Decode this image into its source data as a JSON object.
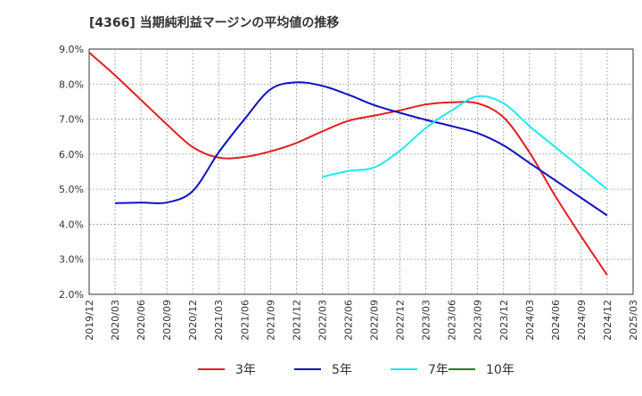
{
  "chart_data": {
    "type": "line",
    "title": "[4366]  当期純利益マージンの平均値の推移",
    "xlabel": "",
    "ylabel": "",
    "ylim": [
      2.0,
      9.0
    ],
    "y_unit": "%",
    "grid": true,
    "legend_position": "bottom",
    "yticks": [
      "2.0%",
      "3.0%",
      "4.0%",
      "5.0%",
      "6.0%",
      "7.0%",
      "8.0%",
      "9.0%"
    ],
    "x_ticks": [
      "2019/12",
      "2020/03",
      "2020/06",
      "2020/09",
      "2020/12",
      "2021/03",
      "2021/06",
      "2021/09",
      "2021/12",
      "2022/03",
      "2022/06",
      "2022/09",
      "2022/12",
      "2023/03",
      "2023/06",
      "2023/09",
      "2023/12",
      "2024/03",
      "2024/06",
      "2024/09",
      "2024/12",
      "2025/03"
    ],
    "series": [
      {
        "name": "3年",
        "color": "#e02020",
        "x": [
          "2019/12",
          "2020/03",
          "2020/06",
          "2020/09",
          "2020/12",
          "2021/03",
          "2021/06",
          "2021/09",
          "2021/12",
          "2022/03",
          "2022/06",
          "2022/09",
          "2022/12",
          "2023/03",
          "2023/06",
          "2023/09",
          "2023/12",
          "2024/03",
          "2024/06",
          "2024/09",
          "2024/12"
        ],
        "values": [
          8.9,
          8.25,
          7.55,
          6.85,
          6.2,
          5.9,
          5.92,
          6.08,
          6.32,
          6.65,
          6.95,
          7.1,
          7.25,
          7.42,
          7.48,
          7.45,
          7.05,
          6.05,
          4.8,
          3.65,
          2.55
        ]
      },
      {
        "name": "5年",
        "color": "#1010c0",
        "x": [
          "2020/03",
          "2020/06",
          "2020/09",
          "2020/12",
          "2021/03",
          "2021/06",
          "2021/09",
          "2021/12",
          "2022/03",
          "2022/06",
          "2022/09",
          "2022/12",
          "2023/03",
          "2023/06",
          "2023/09",
          "2023/12",
          "2024/03",
          "2024/06",
          "2024/09",
          "2024/12"
        ],
        "values": [
          4.6,
          4.62,
          4.62,
          4.95,
          6.05,
          7.0,
          7.85,
          8.05,
          7.95,
          7.7,
          7.4,
          7.18,
          6.98,
          6.8,
          6.6,
          6.25,
          5.75,
          5.25,
          4.75,
          4.25
        ]
      },
      {
        "name": "7年",
        "color": "#20e8f0",
        "x": [
          "2022/03",
          "2022/06",
          "2022/09",
          "2022/12",
          "2023/03",
          "2023/06",
          "2023/09",
          "2023/12",
          "2024/03",
          "2024/06",
          "2024/09",
          "2024/12"
        ],
        "values": [
          5.35,
          5.52,
          5.62,
          6.1,
          6.75,
          7.25,
          7.65,
          7.45,
          6.8,
          6.2,
          5.6,
          5.0
        ]
      },
      {
        "name": "10年",
        "color": "#208020",
        "x": [],
        "values": []
      }
    ]
  }
}
